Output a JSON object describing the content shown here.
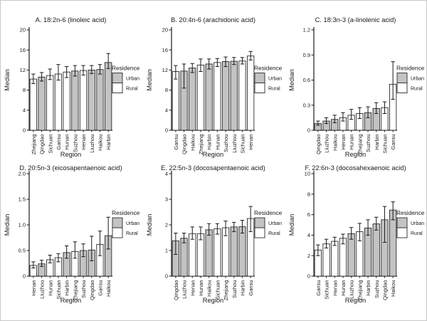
{
  "figure": {
    "legend": {
      "title": "Residence",
      "items": [
        {
          "label": "Urban",
          "color": "#c3c3c3"
        },
        {
          "label": "Rural",
          "color": "#ffffff"
        }
      ]
    },
    "colors": {
      "urban": "#c3c3c3",
      "rural": "#ffffff",
      "bar_border": "#2b2b2b",
      "error": "#1a1a1a",
      "axis": "#1a1a1a",
      "text": "#1a1a1a"
    }
  },
  "chart_data": [
    {
      "type": "bar",
      "panel": "A",
      "title": "A. 18:2n-6 (linoleic acid)",
      "xlabel": "Region",
      "ylabel": "Median",
      "ylim": [
        0,
        20
      ],
      "yticks": [
        "0",
        "4",
        "8",
        "12",
        "16",
        "20"
      ],
      "grid": false,
      "legend_position": "right",
      "categories": [
        "Zhejiang",
        "Qingdao",
        "Sichuan",
        "Gansu",
        "Hunan",
        "Suzhou",
        "Henan",
        "Liuzhou",
        "Haikou",
        "Harbin"
      ],
      "residence": [
        "Rural",
        "Urban",
        "Rural",
        "Rural",
        "Rural",
        "Urban",
        "Rural",
        "Urban",
        "Urban",
        "Urban"
      ],
      "values": [
        10.2,
        10.6,
        10.9,
        11.2,
        11.6,
        11.8,
        11.9,
        12.0,
        12.1,
        13.5
      ],
      "error_low": [
        9.3,
        9.8,
        10.1,
        10.0,
        10.5,
        10.8,
        11.0,
        11.3,
        11.2,
        12.3
      ],
      "error_high": [
        11.2,
        11.5,
        12.2,
        13.1,
        12.7,
        12.9,
        12.9,
        12.9,
        13.1,
        15.3
      ]
    },
    {
      "type": "bar",
      "panel": "B",
      "title": "B. 20:4n-6 (arachidonic acid)",
      "xlabel": "Region",
      "ylabel": "Median",
      "ylim": [
        0,
        20
      ],
      "yticks": [
        "0",
        "4",
        "8",
        "12",
        "16",
        "20"
      ],
      "grid": false,
      "legend_position": "right",
      "categories": [
        "Gansu",
        "Qingdao",
        "Haikou",
        "Zhejiang",
        "Harbin",
        "Hunan",
        "Suzhou",
        "Liuzhou",
        "Sichuan",
        "Henan"
      ],
      "residence": [
        "Rural",
        "Urban",
        "Urban",
        "Rural",
        "Urban",
        "Rural",
        "Urban",
        "Urban",
        "Rural",
        "Rural"
      ],
      "values": [
        11.7,
        11.8,
        12.4,
        13.0,
        13.2,
        13.5,
        13.7,
        13.75,
        13.8,
        14.8
      ],
      "error_low": [
        10.2,
        8.4,
        11.5,
        11.7,
        12.2,
        12.7,
        12.7,
        13.1,
        13.2,
        14.0
      ],
      "error_high": [
        12.9,
        13.2,
        13.3,
        14.2,
        14.2,
        14.3,
        14.6,
        14.5,
        14.5,
        15.7
      ]
    },
    {
      "type": "bar",
      "panel": "C",
      "title": "C. 18:3n-3 (a-linolenic acid)",
      "xlabel": "Region",
      "ylabel": "Median",
      "ylim": [
        0,
        1.2
      ],
      "yticks": [
        "0",
        "0.3",
        "0.6",
        "0.9",
        "1.2"
      ],
      "grid": false,
      "legend_position": "right",
      "categories": [
        "Qingdao",
        "Liuzhou",
        "Haikou",
        "Henan",
        "Hunan",
        "Zhejiang",
        "Suzhou",
        "Harbin",
        "Sichuan",
        "Gansu"
      ],
      "residence": [
        "Urban",
        "Urban",
        "Urban",
        "Rural",
        "Rural",
        "Rural",
        "Urban",
        "Urban",
        "Rural",
        "Rural"
      ],
      "values": [
        0.08,
        0.11,
        0.13,
        0.15,
        0.18,
        0.2,
        0.21,
        0.26,
        0.27,
        0.55
      ],
      "error_low": [
        0.06,
        0.08,
        0.09,
        0.11,
        0.13,
        0.14,
        0.15,
        0.2,
        0.2,
        0.37
      ],
      "error_high": [
        0.11,
        0.15,
        0.18,
        0.21,
        0.25,
        0.27,
        0.28,
        0.33,
        0.34,
        0.82
      ]
    },
    {
      "type": "bar",
      "panel": "D",
      "title": "D. 20:5n-3 (eicosapentaenoic acid)",
      "xlabel": "Region",
      "ylabel": "Median",
      "ylim": [
        0,
        2.0
      ],
      "yticks": [
        "0",
        "0.5",
        "1.0",
        "1.5",
        "2.0"
      ],
      "grid": false,
      "legend_position": "right",
      "categories": [
        "Henan",
        "Liuzhou",
        "Hunan",
        "Sichuan",
        "Harbin",
        "Zhejiang",
        "Suzhou",
        "Qingdao",
        "Gansu",
        "Haikou"
      ],
      "residence": [
        "Rural",
        "Urban",
        "Rural",
        "Rural",
        "Urban",
        "Rural",
        "Urban",
        "Urban",
        "Rural",
        "Urban"
      ],
      "values": [
        0.21,
        0.24,
        0.32,
        0.36,
        0.46,
        0.48,
        0.5,
        0.51,
        0.62,
        0.79
      ],
      "error_low": [
        0.16,
        0.19,
        0.26,
        0.28,
        0.35,
        0.35,
        0.38,
        0.3,
        0.4,
        0.53
      ],
      "error_high": [
        0.28,
        0.31,
        0.41,
        0.44,
        0.59,
        0.67,
        0.63,
        0.78,
        0.88,
        1.15
      ]
    },
    {
      "type": "bar",
      "panel": "E",
      "title": "E. 22:5n-3 (docosapentaenoic acid)",
      "xlabel": "Region",
      "ylabel": "Median",
      "ylim": [
        0,
        4
      ],
      "yticks": [
        "0",
        "1",
        "2",
        "3",
        "4"
      ],
      "grid": false,
      "legend_position": "right",
      "categories": [
        "Qingdao",
        "Liuzhou",
        "Henan",
        "Hunan",
        "Haikou",
        "Sichuan",
        "Zhejiang",
        "Suzhou",
        "Harbin",
        "Gansu"
      ],
      "residence": [
        "Urban",
        "Urban",
        "Rural",
        "Rural",
        "Urban",
        "Rural",
        "Rural",
        "Urban",
        "Urban",
        "Rural"
      ],
      "values": [
        1.38,
        1.48,
        1.66,
        1.66,
        1.81,
        1.85,
        1.89,
        1.92,
        1.93,
        2.25
      ],
      "error_low": [
        0.85,
        1.3,
        1.44,
        1.42,
        1.6,
        1.64,
        1.58,
        1.74,
        1.68,
        1.74
      ],
      "error_high": [
        1.68,
        1.68,
        1.92,
        1.92,
        2.05,
        2.05,
        2.15,
        2.1,
        2.18,
        2.72
      ]
    },
    {
      "type": "bar",
      "panel": "F",
      "title": "F. 22:6n-3 (docosahexaenoic acid)",
      "xlabel": "Region",
      "ylabel": "Median",
      "ylim": [
        0,
        10
      ],
      "yticks": [
        "0",
        "2",
        "4",
        "6",
        "8",
        "10"
      ],
      "grid": false,
      "legend_position": "right",
      "categories": [
        "Gansu",
        "Sichuan",
        "Henan",
        "Hunan",
        "Liuzhou",
        "Zhejiang",
        "Harbin",
        "Suzhou",
        "Qingdao",
        "Haikou"
      ],
      "residence": [
        "Rural",
        "Rural",
        "Rural",
        "Rural",
        "Urban",
        "Rural",
        "Urban",
        "Urban",
        "Urban",
        "Urban"
      ],
      "values": [
        2.55,
        3.15,
        3.4,
        3.7,
        4.15,
        4.35,
        4.7,
        5.1,
        5.5,
        6.45
      ],
      "error_low": [
        2.0,
        2.75,
        3.0,
        3.15,
        3.6,
        3.45,
        4.0,
        4.5,
        3.3,
        5.5
      ],
      "error_high": [
        3.05,
        3.6,
        3.8,
        4.1,
        4.75,
        5.15,
        5.5,
        5.75,
        6.8,
        7.25
      ]
    }
  ]
}
